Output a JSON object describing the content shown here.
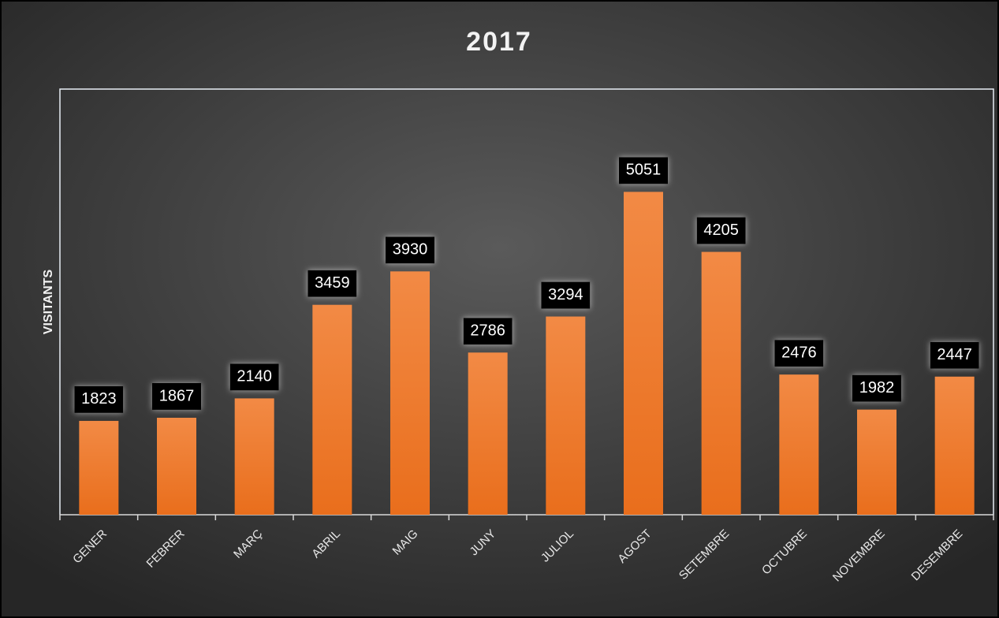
{
  "chart_data": {
    "type": "bar",
    "title": "2017",
    "y_label": "VISITANTS",
    "categories": [
      "GENER",
      "FEBRER",
      "MARÇ",
      "ABRIL",
      "MAIG",
      "JUNY",
      "JULIOL",
      "AGOST",
      "SETEMBRE",
      "OCTUBRE",
      "NOVEMBRE",
      "DESEMBRE"
    ],
    "values": [
      1823,
      1867,
      2140,
      3459,
      3930,
      2786,
      3294,
      5051,
      4205,
      2476,
      1982,
      2447
    ],
    "color": "#ed7d31",
    "ylim": [
      500,
      6500
    ]
  }
}
